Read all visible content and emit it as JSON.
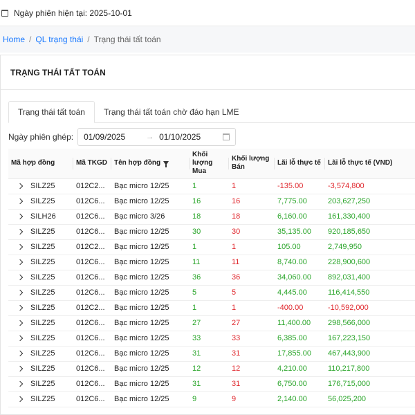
{
  "topbar": {
    "session_label": "Ngày phiên hiện tại: 2025-10-01"
  },
  "breadcrumb": {
    "home": "Home",
    "section": "QL trạng thái",
    "current": "Trạng thái tất toán",
    "sep": "/"
  },
  "card": {
    "title": "TRẠNG THÁI TẤT TOÁN"
  },
  "tabs": [
    {
      "label": "Trạng thái tất toán",
      "active": true
    },
    {
      "label": "Trạng thái tất toán chờ đáo hạn LME",
      "active": false
    }
  ],
  "filter": {
    "label": "Ngày phiên ghép:",
    "from": "01/09/2025",
    "to": "01/10/2025",
    "arrow": "→"
  },
  "table": {
    "headers": {
      "contract_code": "Mã hợp đồng",
      "tkgd": "Mã TKGD",
      "contract_name": "Tên hợp đồng",
      "buy_qty": "Khối lượng Mua",
      "sell_qty": "Khối lượng Bán",
      "pnl": "Lãi lỗ thực tế",
      "pnl_vnd": "Lãi lỗ thực tế (VND)"
    },
    "rows": [
      {
        "code": "SILZ25",
        "tkgd": "012C2...",
        "name": "Bạc micro 12/25",
        "buy": "1",
        "sell": "1",
        "pnl": "-135.00",
        "pnl_vnd": "-3,574,800"
      },
      {
        "code": "SILZ25",
        "tkgd": "012C6...",
        "name": "Bạc micro 12/25",
        "buy": "16",
        "sell": "16",
        "pnl": "7,775.00",
        "pnl_vnd": "203,627,250"
      },
      {
        "code": "SILH26",
        "tkgd": "012C6...",
        "name": "Bạc micro 3/26",
        "buy": "18",
        "sell": "18",
        "pnl": "6,160.00",
        "pnl_vnd": "161,330,400"
      },
      {
        "code": "SILZ25",
        "tkgd": "012C6...",
        "name": "Bạc micro 12/25",
        "buy": "30",
        "sell": "30",
        "pnl": "35,135.00",
        "pnl_vnd": "920,185,650"
      },
      {
        "code": "SILZ25",
        "tkgd": "012C2...",
        "name": "Bạc micro 12/25",
        "buy": "1",
        "sell": "1",
        "pnl": "105.00",
        "pnl_vnd": "2,749,950"
      },
      {
        "code": "SILZ25",
        "tkgd": "012C6...",
        "name": "Bạc micro 12/25",
        "buy": "11",
        "sell": "11",
        "pnl": "8,740.00",
        "pnl_vnd": "228,900,600"
      },
      {
        "code": "SILZ25",
        "tkgd": "012C6...",
        "name": "Bạc micro 12/25",
        "buy": "36",
        "sell": "36",
        "pnl": "34,060.00",
        "pnl_vnd": "892,031,400"
      },
      {
        "code": "SILZ25",
        "tkgd": "012C6...",
        "name": "Bạc micro 12/25",
        "buy": "5",
        "sell": "5",
        "pnl": "4,445.00",
        "pnl_vnd": "116,414,550"
      },
      {
        "code": "SILZ25",
        "tkgd": "012C2...",
        "name": "Bạc micro 12/25",
        "buy": "1",
        "sell": "1",
        "pnl": "-400.00",
        "pnl_vnd": "-10,592,000"
      },
      {
        "code": "SILZ25",
        "tkgd": "012C6...",
        "name": "Bạc micro 12/25",
        "buy": "27",
        "sell": "27",
        "pnl": "11,400.00",
        "pnl_vnd": "298,566,000"
      },
      {
        "code": "SILZ25",
        "tkgd": "012C6...",
        "name": "Bạc micro 12/25",
        "buy": "33",
        "sell": "33",
        "pnl": "6,385.00",
        "pnl_vnd": "167,223,150"
      },
      {
        "code": "SILZ25",
        "tkgd": "012C6...",
        "name": "Bạc micro 12/25",
        "buy": "31",
        "sell": "31",
        "pnl": "17,855.00",
        "pnl_vnd": "467,443,900"
      },
      {
        "code": "SILZ25",
        "tkgd": "012C6...",
        "name": "Bạc micro 12/25",
        "buy": "12",
        "sell": "12",
        "pnl": "4,210.00",
        "pnl_vnd": "110,217,800"
      },
      {
        "code": "SILZ25",
        "tkgd": "012C6...",
        "name": "Bạc micro 12/25",
        "buy": "31",
        "sell": "31",
        "pnl": "6,750.00",
        "pnl_vnd": "176,715,000"
      },
      {
        "code": "SILZ25",
        "tkgd": "012C6...",
        "name": "Bạc micro 12/25",
        "buy": "9",
        "sell": "9",
        "pnl": "2,140.00",
        "pnl_vnd": "56,025,200"
      }
    ]
  },
  "colors": {
    "positive": "#2aa52a",
    "negative": "#e0282e",
    "link": "#1677ff"
  },
  "icons": {
    "calendar": "calendar-icon",
    "expand": "chevron-right-icon",
    "filter": "filter-icon"
  }
}
